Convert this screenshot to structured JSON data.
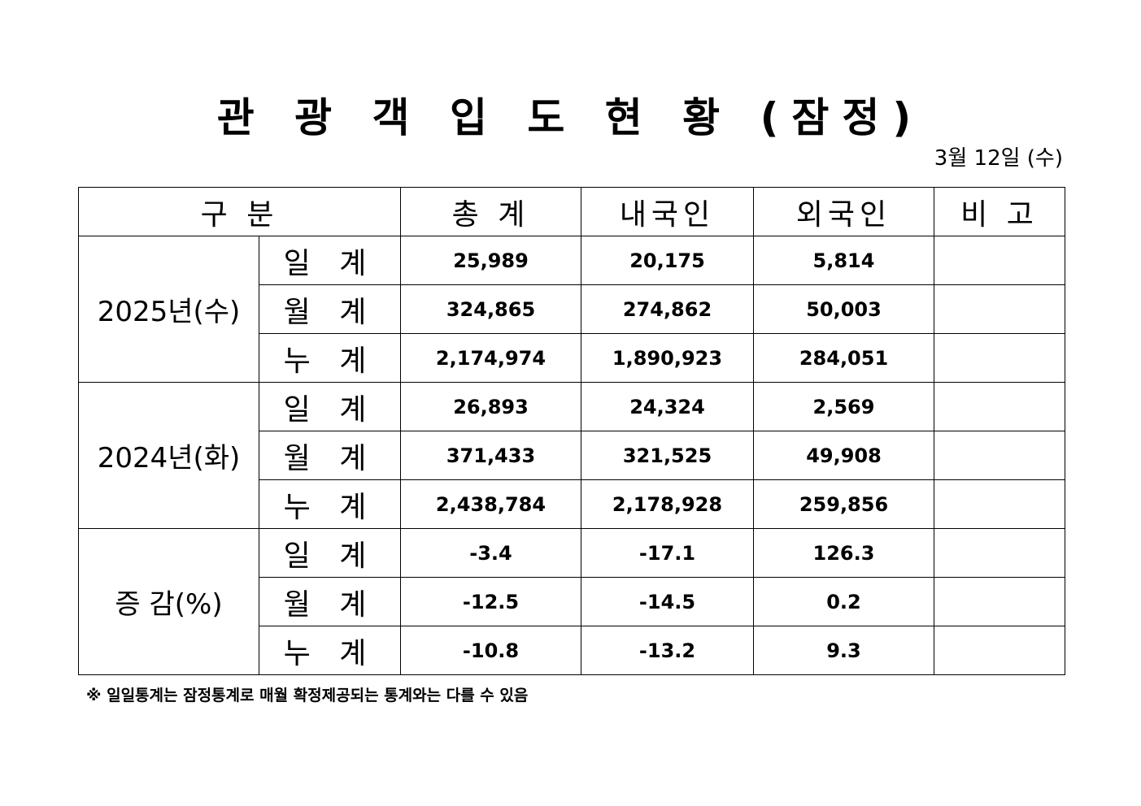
{
  "title": "관 광 객 입 도 현 황 (잠정)",
  "date": "3월 12일 (수)",
  "header": {
    "category": "구  분",
    "total": "총  계",
    "domestic": "내국인",
    "foreign": "외국인",
    "remark": "비  고"
  },
  "groups": [
    {
      "label": "2025년(수)",
      "rows": [
        {
          "sub": "일 계",
          "total": "25,989",
          "domestic": "20,175",
          "foreign": "5,814",
          "remark": ""
        },
        {
          "sub": "월 계",
          "total": "324,865",
          "domestic": "274,862",
          "foreign": "50,003",
          "remark": ""
        },
        {
          "sub": "누 계",
          "total": "2,174,974",
          "domestic": "1,890,923",
          "foreign": "284,051",
          "remark": ""
        }
      ]
    },
    {
      "label": "2024년(화)",
      "rows": [
        {
          "sub": "일 계",
          "total": "26,893",
          "domestic": "24,324",
          "foreign": "2,569",
          "remark": ""
        },
        {
          "sub": "월 계",
          "total": "371,433",
          "domestic": "321,525",
          "foreign": "49,908",
          "remark": ""
        },
        {
          "sub": "누 계",
          "total": "2,438,784",
          "domestic": "2,178,928",
          "foreign": "259,856",
          "remark": ""
        }
      ]
    },
    {
      "label": "증 감(%)",
      "rows": [
        {
          "sub": "일 계",
          "total": "-3.4",
          "domestic": "-17.1",
          "foreign": "126.3",
          "remark": ""
        },
        {
          "sub": "월 계",
          "total": "-12.5",
          "domestic": "-14.5",
          "foreign": "0.2",
          "remark": ""
        },
        {
          "sub": "누 계",
          "total": "-10.8",
          "domestic": "-13.2",
          "foreign": "9.3",
          "remark": ""
        }
      ]
    }
  ],
  "note": "※ 일일통계는 잠정통계로 매월 확정제공되는 통계와는 다를 수 있음"
}
